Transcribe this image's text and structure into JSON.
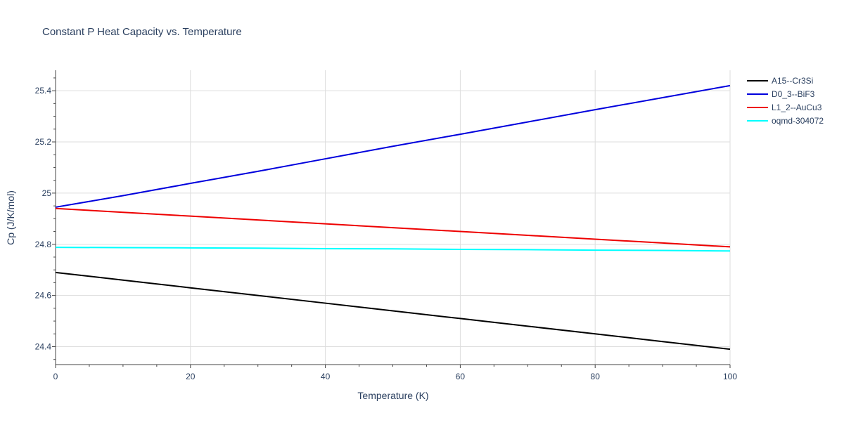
{
  "chart_data": {
    "type": "line",
    "title": "Constant P Heat Capacity vs. Temperature",
    "xlabel": "Temperature (K)",
    "ylabel": "Cp (J/K/mol)",
    "xlim": [
      0,
      100
    ],
    "ylim": [
      24.33,
      25.48
    ],
    "x_ticks": [
      0,
      20,
      40,
      60,
      80,
      100
    ],
    "x_tick_labels": [
      "0",
      "20",
      "40",
      "60",
      "80",
      "100"
    ],
    "y_ticks": [
      24.4,
      24.6,
      24.8,
      25.0,
      25.2,
      25.4
    ],
    "y_tick_labels": [
      "24.4",
      "24.6",
      "24.8",
      "25",
      "25.2",
      "25.4"
    ],
    "grid": true,
    "legend_position": "top-right",
    "series": [
      {
        "name": "A15--Cr3Si",
        "color": "#000000",
        "x": [
          0,
          10,
          20,
          30,
          40,
          50,
          60,
          70,
          80,
          90,
          100
        ],
        "y": [
          24.69,
          24.66,
          24.63,
          24.6,
          24.57,
          24.54,
          24.51,
          24.48,
          24.45,
          24.42,
          24.39
        ]
      },
      {
        "name": "D0_3--BiF3",
        "color": "#0000dd",
        "x": [
          0,
          10,
          20,
          30,
          40,
          50,
          60,
          70,
          80,
          90,
          100
        ],
        "y": [
          24.945,
          24.99,
          25.038,
          25.085,
          25.134,
          25.183,
          25.23,
          25.278,
          25.326,
          25.373,
          25.42
        ]
      },
      {
        "name": "L1_2--AuCu3",
        "color": "#ee0000",
        "x": [
          0,
          10,
          20,
          30,
          40,
          50,
          60,
          70,
          80,
          90,
          100
        ],
        "y": [
          24.94,
          24.925,
          24.91,
          24.895,
          24.88,
          24.865,
          24.85,
          24.835,
          24.82,
          24.805,
          24.79
        ]
      },
      {
        "name": "oqmd-304072",
        "color": "#00ffff",
        "x": [
          0,
          10,
          20,
          30,
          40,
          50,
          60,
          70,
          80,
          90,
          100
        ],
        "y": [
          24.788,
          24.787,
          24.786,
          24.785,
          24.783,
          24.782,
          24.78,
          24.779,
          24.777,
          24.776,
          24.774
        ]
      }
    ]
  }
}
